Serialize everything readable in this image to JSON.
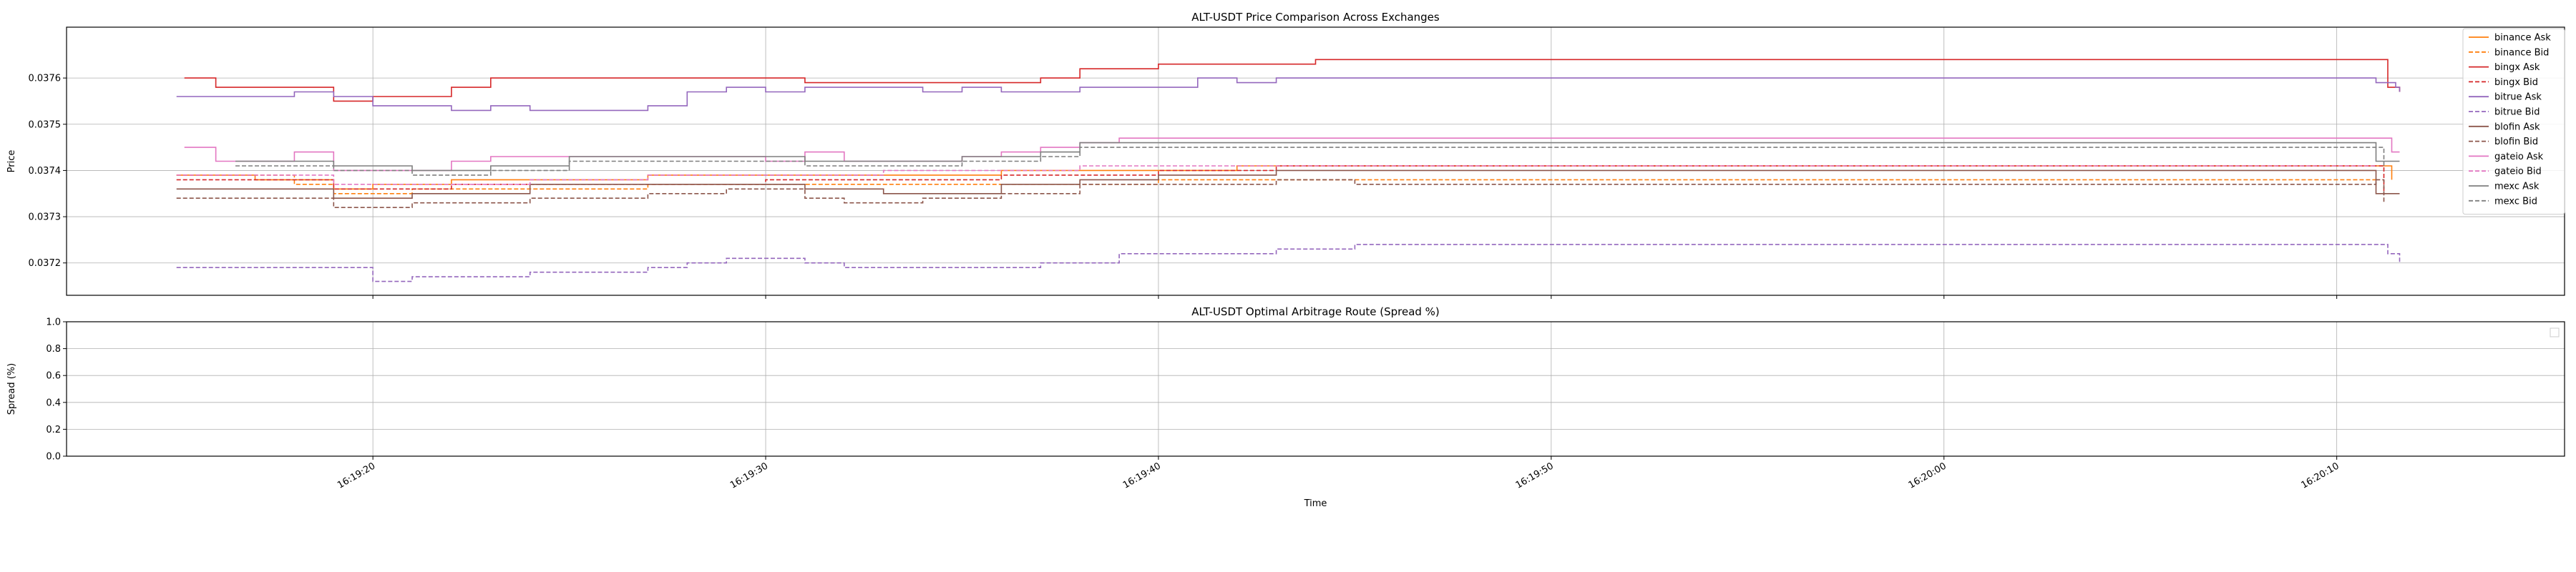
{
  "figure": {
    "background": "#ffffff"
  },
  "chart_data": [
    {
      "type": "line",
      "title": "ALT-USDT Price Comparison Across Exchanges",
      "xlabel": "",
      "ylabel": "Price",
      "xaxis_kind": "time",
      "xlim": [
        "16:19:12.2",
        "16:20:15.8"
      ],
      "ylim": [
        0.03713,
        0.03771
      ],
      "yticks": [
        "0.0372",
        "0.0373",
        "0.0374",
        "0.0375",
        "0.0376"
      ],
      "grid": true,
      "legend": "upper-right-outside",
      "series": [
        {
          "name": "binance Ask",
          "color": "#ff7f0e",
          "dash": "solid",
          "points": [
            [
              "16:19:15.0",
              0.03739
            ],
            [
              "16:19:17.0",
              0.03738
            ],
            [
              "16:19:19.0",
              0.03736
            ],
            [
              "16:19:20.0",
              0.03737
            ],
            [
              "16:19:22.0",
              0.03738
            ],
            [
              "16:19:27.0",
              0.03739
            ],
            [
              "16:19:32.0",
              0.03739
            ],
            [
              "16:19:36.0",
              0.0374
            ],
            [
              "16:19:40.0",
              0.0374
            ],
            [
              "16:19:42.0",
              0.03741
            ],
            [
              "16:20:11.0",
              0.03741
            ],
            [
              "16:20:11.4",
              0.03738
            ]
          ]
        },
        {
          "name": "binance Bid",
          "color": "#ff7f0e",
          "dash": "dash",
          "points": [
            [
              "16:19:15.0",
              0.03739
            ],
            [
              "16:19:18.0",
              0.03737
            ],
            [
              "16:19:19.0",
              0.03735
            ],
            [
              "16:19:21.0",
              0.03736
            ],
            [
              "16:19:27.0",
              0.03737
            ],
            [
              "16:19:32.0",
              0.03737
            ],
            [
              "16:19:40.0",
              0.03738
            ],
            [
              "16:20:11.0",
              0.03738
            ]
          ]
        },
        {
          "name": "bingx Ask",
          "color": "#d62728",
          "dash": "solid",
          "points": [
            [
              "16:19:15.2",
              0.0376
            ],
            [
              "16:19:16.0",
              0.03758
            ],
            [
              "16:19:18.0",
              0.03758
            ],
            [
              "16:19:19.0",
              0.03755
            ],
            [
              "16:19:20.0",
              0.03756
            ],
            [
              "16:19:21.0",
              0.03756
            ],
            [
              "16:19:22.0",
              0.03758
            ],
            [
              "16:19:23.0",
              0.0376
            ],
            [
              "16:19:30.0",
              0.0376
            ],
            [
              "16:19:31.0",
              0.03759
            ],
            [
              "16:19:36.0",
              0.03759
            ],
            [
              "16:19:37.0",
              0.0376
            ],
            [
              "16:19:38.0",
              0.03762
            ],
            [
              "16:19:40.0",
              0.03763
            ],
            [
              "16:19:44.0",
              0.03764
            ],
            [
              "16:20:11.2",
              0.03764
            ],
            [
              "16:20:11.3",
              0.03758
            ],
            [
              "16:20:11.6",
              0.03757
            ]
          ]
        },
        {
          "name": "bingx Bid",
          "color": "#d62728",
          "dash": "dash",
          "points": [
            [
              "16:19:15.0",
              0.03738
            ],
            [
              "16:19:19.0",
              0.03736
            ],
            [
              "16:19:22.0",
              0.03737
            ],
            [
              "16:19:30.0",
              0.03738
            ],
            [
              "16:19:36.0",
              0.03739
            ],
            [
              "16:19:40.0",
              0.0374
            ],
            [
              "16:19:43.0",
              0.03741
            ],
            [
              "16:20:11.0",
              0.03741
            ],
            [
              "16:20:11.2",
              0.03735
            ]
          ]
        },
        {
          "name": "bitrue Ask",
          "color": "#9467bd",
          "dash": "solid",
          "points": [
            [
              "16:19:15.0",
              0.03756
            ],
            [
              "16:19:18.0",
              0.03757
            ],
            [
              "16:19:19.0",
              0.03756
            ],
            [
              "16:19:20.0",
              0.03754
            ],
            [
              "16:19:22.0",
              0.03753
            ],
            [
              "16:19:23.0",
              0.03754
            ],
            [
              "16:19:24.0",
              0.03753
            ],
            [
              "16:19:27.0",
              0.03754
            ],
            [
              "16:19:28.0",
              0.03757
            ],
            [
              "16:19:29.0",
              0.03758
            ],
            [
              "16:19:30.0",
              0.03757
            ],
            [
              "16:19:31.0",
              0.03758
            ],
            [
              "16:19:34.0",
              0.03757
            ],
            [
              "16:19:35.0",
              0.03758
            ],
            [
              "16:19:36.0",
              0.03757
            ],
            [
              "16:19:38.0",
              0.03758
            ],
            [
              "16:19:40.0",
              0.03758
            ],
            [
              "16:19:41.0",
              0.0376
            ],
            [
              "16:19:42.0",
              0.03759
            ],
            [
              "16:19:43.0",
              0.0376
            ],
            [
              "16:19:50.0",
              0.0376
            ],
            [
              "16:20:11.0",
              0.03759
            ],
            [
              "16:20:11.5",
              0.03758
            ],
            [
              "16:20:11.6",
              0.03757
            ]
          ]
        },
        {
          "name": "bitrue Bid",
          "color": "#9467bd",
          "dash": "dash",
          "points": [
            [
              "16:19:15.0",
              0.03719
            ],
            [
              "16:19:19.0",
              0.03719
            ],
            [
              "16:19:20.0",
              0.03716
            ],
            [
              "16:19:21.0",
              0.03717
            ],
            [
              "16:19:24.0",
              0.03718
            ],
            [
              "16:19:27.0",
              0.03719
            ],
            [
              "16:19:28.0",
              0.0372
            ],
            [
              "16:19:29.0",
              0.03721
            ],
            [
              "16:19:30.0",
              0.03721
            ],
            [
              "16:19:31.0",
              0.0372
            ],
            [
              "16:19:32.0",
              0.03719
            ],
            [
              "16:19:37.0",
              0.0372
            ],
            [
              "16:19:39.0",
              0.03722
            ],
            [
              "16:19:41.0",
              0.03722
            ],
            [
              "16:19:43.0",
              0.03723
            ],
            [
              "16:19:45.0",
              0.03724
            ],
            [
              "16:20:11.0",
              0.03724
            ],
            [
              "16:20:11.3",
              0.03722
            ],
            [
              "16:20:11.6",
              0.0372
            ]
          ]
        },
        {
          "name": "blofin Ask",
          "color": "#8c564b",
          "dash": "solid",
          "points": [
            [
              "16:19:15.0",
              0.03736
            ],
            [
              "16:19:18.0",
              0.03736
            ],
            [
              "16:19:19.0",
              0.03734
            ],
            [
              "16:19:21.0",
              0.03735
            ],
            [
              "16:19:24.0",
              0.03737
            ],
            [
              "16:19:27.0",
              0.03737
            ],
            [
              "16:19:30.0",
              0.03737
            ],
            [
              "16:19:31.0",
              0.03736
            ],
            [
              "16:19:33.0",
              0.03735
            ],
            [
              "16:19:36.0",
              0.03737
            ],
            [
              "16:19:38.0",
              0.03738
            ],
            [
              "16:19:40.0",
              0.03739
            ],
            [
              "16:19:43.0",
              0.0374
            ],
            [
              "16:20:10.5",
              0.0374
            ],
            [
              "16:20:11.0",
              0.03735
            ],
            [
              "16:20:11.6",
              0.03735
            ]
          ]
        },
        {
          "name": "blofin Bid",
          "color": "#8c564b",
          "dash": "dash",
          "points": [
            [
              "16:19:15.0",
              0.03734
            ],
            [
              "16:19:18.0",
              0.03734
            ],
            [
              "16:19:19.0",
              0.03732
            ],
            [
              "16:19:21.0",
              0.03733
            ],
            [
              "16:19:24.0",
              0.03734
            ],
            [
              "16:19:27.0",
              0.03735
            ],
            [
              "16:19:29.0",
              0.03736
            ],
            [
              "16:19:31.0",
              0.03734
            ],
            [
              "16:19:32.0",
              0.03733
            ],
            [
              "16:19:34.0",
              0.03734
            ],
            [
              "16:19:36.0",
              0.03735
            ],
            [
              "16:19:38.0",
              0.03737
            ],
            [
              "16:19:41.0",
              0.03737
            ],
            [
              "16:19:43.0",
              0.03738
            ],
            [
              "16:19:45.0",
              0.03737
            ],
            [
              "16:20:11.0",
              0.03738
            ],
            [
              "16:20:11.2",
              0.03733
            ]
          ]
        },
        {
          "name": "gateio Ask",
          "color": "#e377c2",
          "dash": "solid",
          "points": [
            [
              "16:19:15.2",
              0.03745
            ],
            [
              "16:19:16.0",
              0.03742
            ],
            [
              "16:19:18.0",
              0.03744
            ],
            [
              "16:19:19.0",
              0.0374
            ],
            [
              "16:19:22.0",
              0.03742
            ],
            [
              "16:19:23.0",
              0.03743
            ],
            [
              "16:19:25.0",
              0.03743
            ],
            [
              "16:19:27.0",
              0.03743
            ],
            [
              "16:19:30.0",
              0.03742
            ],
            [
              "16:19:31.0",
              0.03744
            ],
            [
              "16:19:32.0",
              0.03742
            ],
            [
              "16:19:33.0",
              0.03742
            ],
            [
              "16:19:35.0",
              0.03743
            ],
            [
              "16:19:36.0",
              0.03744
            ],
            [
              "16:19:37.0",
              0.03745
            ],
            [
              "16:19:38.0",
              0.03746
            ],
            [
              "16:19:39.0",
              0.03747
            ],
            [
              "16:20:10.0",
              0.03747
            ],
            [
              "16:20:11.0",
              0.03747
            ],
            [
              "16:20:11.4",
              0.03744
            ],
            [
              "16:20:11.6",
              0.03744
            ]
          ]
        },
        {
          "name": "gateio Bid",
          "color": "#e377c2",
          "dash": "dash",
          "points": [
            [
              "16:19:15.0",
              0.03739
            ],
            [
              "16:19:19.0",
              0.03737
            ],
            [
              "16:19:20.0",
              0.03737
            ],
            [
              "16:19:24.0",
              0.03738
            ],
            [
              "16:19:27.0",
              0.03739
            ],
            [
              "16:19:30.0",
              0.03739
            ],
            [
              "16:19:33.0",
              0.0374
            ],
            [
              "16:19:38.0",
              0.03741
            ],
            [
              "16:20:11.0",
              0.03741
            ]
          ]
        },
        {
          "name": "mexc Ask",
          "color": "#7f7f7f",
          "dash": "solid",
          "points": [
            [
              "16:19:16.5",
              0.03742
            ],
            [
              "16:19:19.0",
              0.03741
            ],
            [
              "16:19:21.0",
              0.0374
            ],
            [
              "16:19:23.0",
              0.03741
            ],
            [
              "16:19:25.0",
              0.03743
            ],
            [
              "16:19:30.0",
              0.03743
            ],
            [
              "16:19:31.0",
              0.03742
            ],
            [
              "16:19:35.0",
              0.03743
            ],
            [
              "16:19:37.0",
              0.03744
            ],
            [
              "16:19:38.0",
              0.03746
            ],
            [
              "16:20:10.5",
              0.03746
            ],
            [
              "16:20:11.0",
              0.03742
            ],
            [
              "16:20:11.6",
              0.03742
            ]
          ]
        },
        {
          "name": "mexc Bid",
          "color": "#7f7f7f",
          "dash": "dash",
          "points": [
            [
              "16:19:16.5",
              0.03741
            ],
            [
              "16:19:19.0",
              0.0374
            ],
            [
              "16:19:21.0",
              0.03739
            ],
            [
              "16:19:23.0",
              0.0374
            ],
            [
              "16:19:25.0",
              0.03742
            ],
            [
              "16:19:30.0",
              0.03742
            ],
            [
              "16:19:31.0",
              0.03741
            ],
            [
              "16:19:35.0",
              0.03742
            ],
            [
              "16:19:37.0",
              0.03743
            ],
            [
              "16:19:38.0",
              0.03745
            ],
            [
              "16:20:11.0",
              0.03745
            ],
            [
              "16:20:11.2",
              0.03741
            ]
          ]
        }
      ]
    },
    {
      "type": "line",
      "title": "ALT-USDT Optimal Arbitrage Route (Spread %)",
      "xlabel": "Time",
      "ylabel": "Spread (%)",
      "xaxis_kind": "time",
      "xlim": [
        "16:19:12.2",
        "16:20:15.8"
      ],
      "ylim": [
        0.0,
        1.0
      ],
      "yticks": [
        "0.0",
        "0.2",
        "0.4",
        "0.6",
        "0.8",
        "1.0"
      ],
      "xticks": [
        "16:19:20",
        "16:19:30",
        "16:19:40",
        "16:19:50",
        "16:20:00",
        "16:20:10"
      ],
      "grid": true,
      "legend": "upper-right-empty",
      "series": []
    }
  ]
}
